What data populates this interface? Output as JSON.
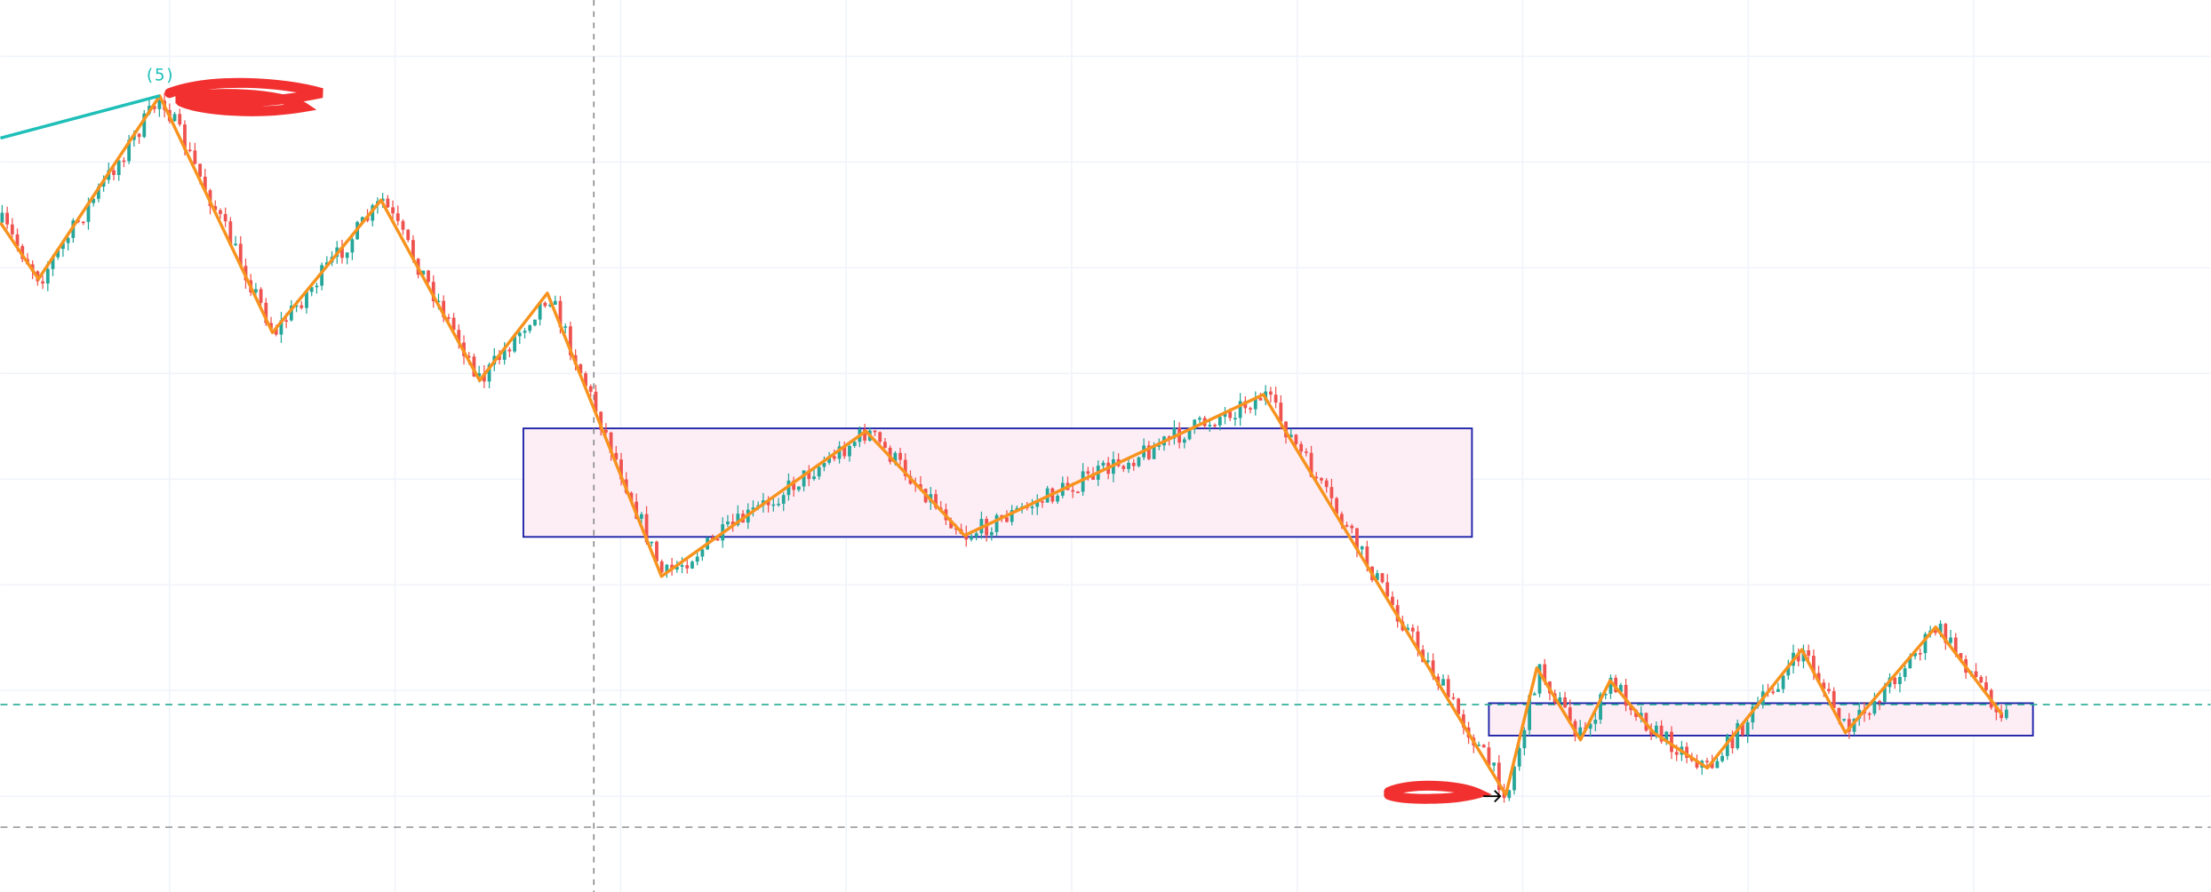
{
  "annotations": {
    "wave_label": "(5)"
  }
}
